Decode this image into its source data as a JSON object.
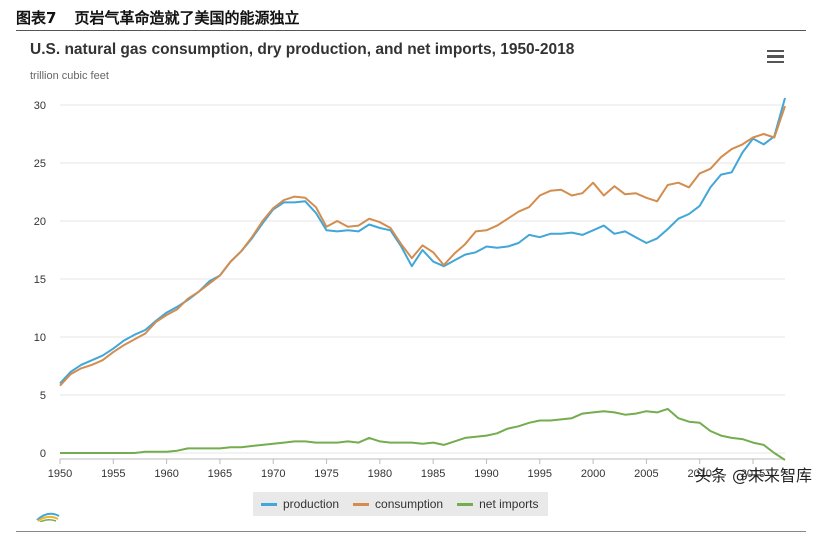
{
  "figure": {
    "label": "图表7",
    "caption": "页岩气革命造就了美国的能源独立"
  },
  "watermark": "头条 @未来智库",
  "colors": {
    "production": "#41a6d8",
    "consumption": "#d38d4f",
    "net_imports": "#73ad4f"
  },
  "chart_data": {
    "type": "line",
    "title": "U.S. natural gas consumption, dry production, and net imports, 1950-2018",
    "ylabel": "trillion cubic feet",
    "xlabel": "",
    "xlim": [
      1950,
      2018
    ],
    "ylim": [
      0,
      30
    ],
    "x_ticks": [
      1950,
      1955,
      1960,
      1965,
      1970,
      1975,
      1980,
      1985,
      1990,
      1995,
      2000,
      2005,
      2010,
      2015
    ],
    "y_ticks": [
      0,
      5,
      10,
      15,
      20,
      25,
      30
    ],
    "legend_position": "bottom-center",
    "grid": true,
    "x": [
      1950,
      1951,
      1952,
      1953,
      1954,
      1955,
      1956,
      1957,
      1958,
      1959,
      1960,
      1961,
      1962,
      1963,
      1964,
      1965,
      1966,
      1967,
      1968,
      1969,
      1970,
      1971,
      1972,
      1973,
      1974,
      1975,
      1976,
      1977,
      1978,
      1979,
      1980,
      1981,
      1982,
      1983,
      1984,
      1985,
      1986,
      1987,
      1988,
      1989,
      1990,
      1991,
      1992,
      1993,
      1994,
      1995,
      1996,
      1997,
      1998,
      1999,
      2000,
      2001,
      2002,
      2003,
      2004,
      2005,
      2006,
      2007,
      2008,
      2009,
      2010,
      2011,
      2012,
      2013,
      2014,
      2015,
      2016,
      2017,
      2018
    ],
    "series": [
      {
        "name": "production",
        "color": "#41a6d8",
        "values": [
          6.0,
          7.0,
          7.6,
          8.0,
          8.4,
          9.0,
          9.7,
          10.2,
          10.6,
          11.4,
          12.1,
          12.6,
          13.2,
          13.9,
          14.8,
          15.3,
          16.5,
          17.4,
          18.5,
          19.8,
          21.0,
          21.6,
          21.6,
          21.7,
          20.7,
          19.2,
          19.1,
          19.2,
          19.1,
          19.7,
          19.4,
          19.2,
          17.8,
          16.1,
          17.5,
          16.5,
          16.1,
          16.6,
          17.1,
          17.3,
          17.8,
          17.7,
          17.8,
          18.1,
          18.8,
          18.6,
          18.9,
          18.9,
          19.0,
          18.8,
          19.2,
          19.6,
          18.9,
          19.1,
          18.6,
          18.1,
          18.5,
          19.3,
          20.2,
          20.6,
          21.3,
          22.9,
          24.0,
          24.2,
          25.9,
          27.1,
          26.6,
          27.3,
          30.6
        ]
      },
      {
        "name": "consumption",
        "color": "#d38d4f",
        "values": [
          5.8,
          6.8,
          7.3,
          7.6,
          8.0,
          8.7,
          9.3,
          9.8,
          10.3,
          11.3,
          11.9,
          12.4,
          13.3,
          13.9,
          14.6,
          15.3,
          16.5,
          17.4,
          18.6,
          20.0,
          21.1,
          21.8,
          22.1,
          22.0,
          21.2,
          19.5,
          20.0,
          19.5,
          19.6,
          20.2,
          19.9,
          19.4,
          18.0,
          16.8,
          17.9,
          17.3,
          16.2,
          17.2,
          18.0,
          19.1,
          19.2,
          19.6,
          20.2,
          20.8,
          21.2,
          22.2,
          22.6,
          22.7,
          22.2,
          22.4,
          23.3,
          22.2,
          23.0,
          22.3,
          22.4,
          22.0,
          21.7,
          23.1,
          23.3,
          22.9,
          24.1,
          24.5,
          25.5,
          26.2,
          26.6,
          27.2,
          27.5,
          27.2,
          29.9
        ]
      },
      {
        "name": "net imports",
        "color": "#73ad4f",
        "values": [
          0.0,
          0.0,
          0.0,
          0.0,
          0.0,
          0.0,
          0.0,
          0.0,
          0.1,
          0.1,
          0.1,
          0.2,
          0.4,
          0.4,
          0.4,
          0.4,
          0.5,
          0.5,
          0.6,
          0.7,
          0.8,
          0.9,
          1.0,
          1.0,
          0.9,
          0.9,
          0.9,
          1.0,
          0.9,
          1.3,
          1.0,
          0.9,
          0.9,
          0.9,
          0.8,
          0.9,
          0.7,
          1.0,
          1.3,
          1.4,
          1.5,
          1.7,
          2.1,
          2.3,
          2.6,
          2.8,
          2.8,
          2.9,
          3.0,
          3.4,
          3.5,
          3.6,
          3.5,
          3.3,
          3.4,
          3.6,
          3.5,
          3.8,
          3.0,
          2.7,
          2.6,
          1.9,
          1.5,
          1.3,
          1.2,
          0.9,
          0.7,
          0.0,
          -0.6
        ]
      }
    ]
  }
}
